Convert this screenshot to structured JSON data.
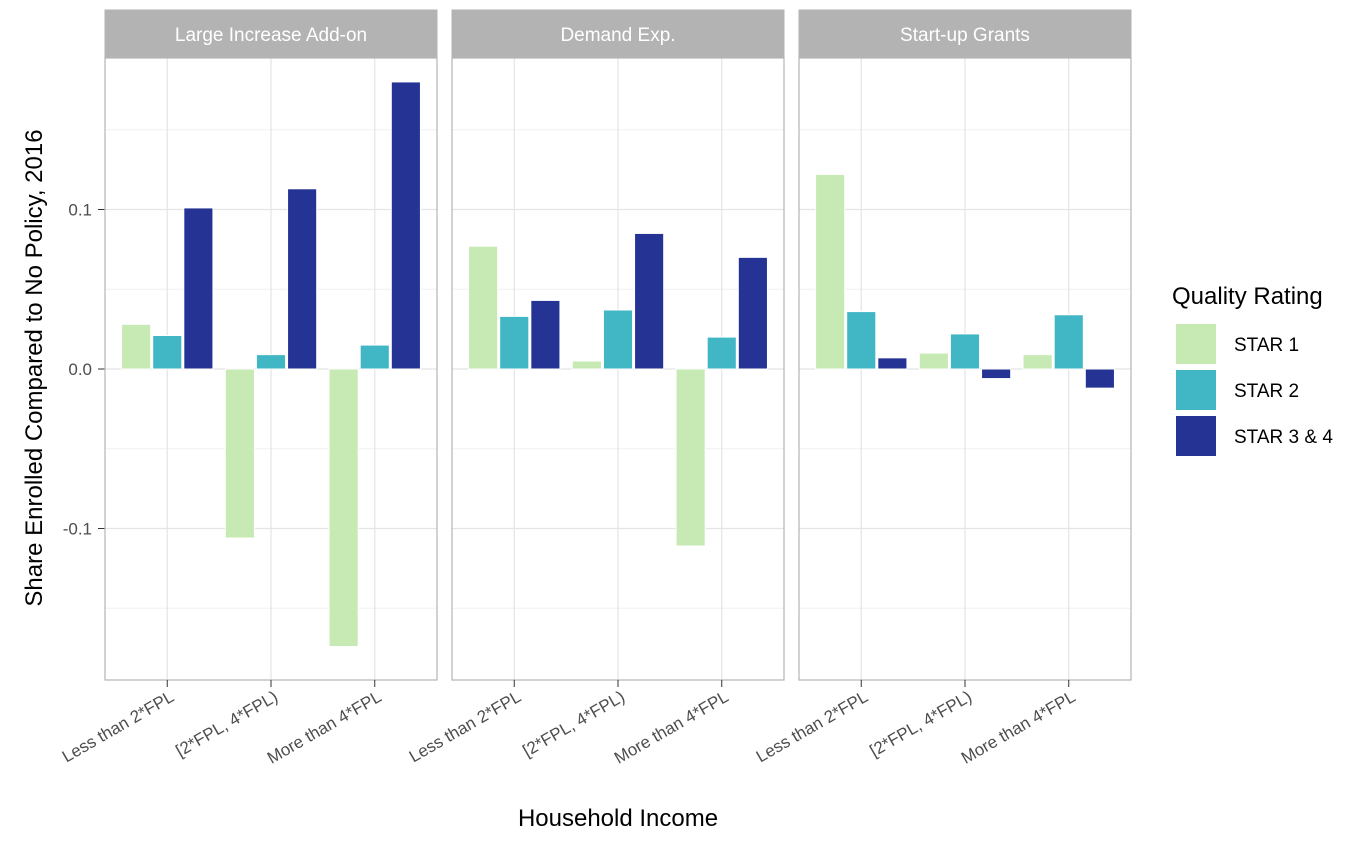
{
  "chart_data": {
    "type": "bar",
    "xlabel": "Household Income",
    "ylabel": "Share Enrolled Compared to No Policy, 2016",
    "ylim": [
      -0.195,
      0.195
    ],
    "yticks": [
      -0.1,
      0.0,
      0.1
    ],
    "ytick_labels": [
      "-0.1",
      "0.0",
      "0.1"
    ],
    "grid": true,
    "legend_position": "right",
    "legend": {
      "title": "Quality Rating",
      "entries": [
        "STAR 1",
        "STAR 2",
        "STAR 3 & 4"
      ]
    },
    "colors": [
      "#c7e9b4",
      "#41b6c4",
      "#253494"
    ],
    "categories": [
      "Less than 2*FPL",
      "[2*FPL, 4*FPL)",
      "More than 4*FPL"
    ],
    "facets": [
      {
        "title": "Large Increase Add-on",
        "series": [
          {
            "name": "STAR 1",
            "values": [
              0.028,
              -0.106,
              -0.174
            ]
          },
          {
            "name": "STAR 2",
            "values": [
              0.021,
              0.009,
              0.015
            ]
          },
          {
            "name": "STAR 3 & 4",
            "values": [
              0.101,
              0.113,
              0.18
            ]
          }
        ]
      },
      {
        "title": "Demand Exp.",
        "series": [
          {
            "name": "STAR 1",
            "values": [
              0.077,
              0.005,
              -0.111
            ]
          },
          {
            "name": "STAR 2",
            "values": [
              0.033,
              0.037,
              0.02
            ]
          },
          {
            "name": "STAR 3 & 4",
            "values": [
              0.043,
              0.085,
              0.07
            ]
          }
        ]
      },
      {
        "title": "Start-up Grants",
        "series": [
          {
            "name": "STAR 1",
            "values": [
              0.122,
              0.01,
              0.009
            ]
          },
          {
            "name": "STAR 2",
            "values": [
              0.036,
              0.022,
              0.034
            ]
          },
          {
            "name": "STAR 3 & 4",
            "values": [
              0.007,
              -0.006,
              -0.012
            ]
          }
        ]
      }
    ]
  }
}
